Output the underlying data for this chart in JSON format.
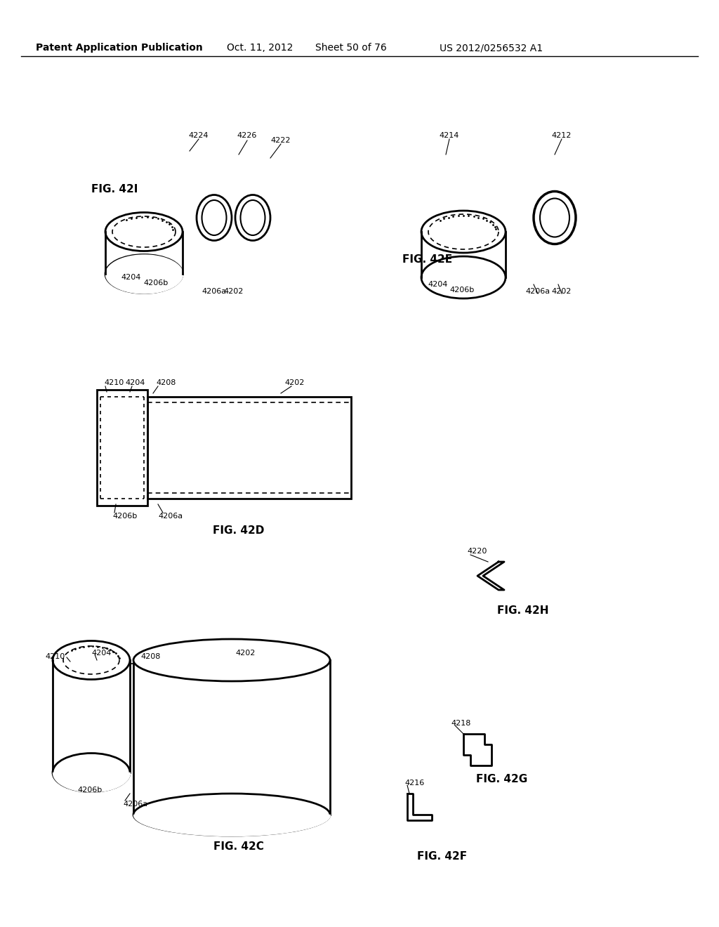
{
  "bg_color": "#ffffff",
  "header_text": "Patent Application Publication",
  "header_date": "Oct. 11, 2012",
  "header_sheet": "Sheet 50 of 76",
  "header_patent": "US 2012/0256532 A1",
  "figures": {
    "fig42I_label": "FIG. 42I",
    "fig42E_label": "FIG. 42E",
    "fig42D_label": "FIG. 42D",
    "fig42C_label": "FIG. 42C",
    "fig42F_label": "FIG. 42F",
    "fig42G_label": "FIG. 42G",
    "fig42H_label": "FIG. 42H"
  },
  "ref_numbers": [
    "4202",
    "4204",
    "4206a",
    "4206b",
    "4208",
    "4210",
    "4212",
    "4214",
    "4216",
    "4218",
    "4220",
    "4222",
    "4224",
    "4226"
  ]
}
